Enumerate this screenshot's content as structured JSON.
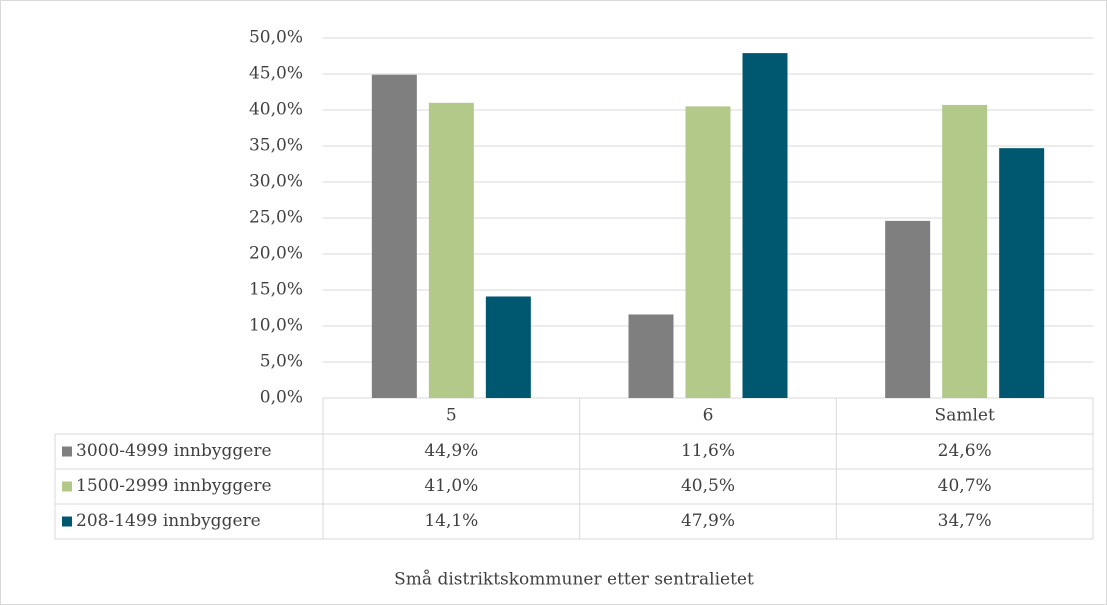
{
  "chart_data": {
    "type": "bar",
    "x_label": "Små distriktskommuner etter sentralietet",
    "categories": [
      "5",
      "6",
      "Samlet"
    ],
    "series": [
      {
        "name": "3000-4999 innbyggere",
        "color": "#7f7f80",
        "values": [
          44.9,
          11.6,
          24.6
        ],
        "value_labels": [
          "44,9%",
          "11,6%",
          "24,6%"
        ]
      },
      {
        "name": "1500-2999 innbyggere",
        "color": "#b2c98a",
        "values": [
          41.0,
          40.5,
          40.7
        ],
        "value_labels": [
          "41,0%",
          "40,5%",
          "40,7%"
        ]
      },
      {
        "name": "208-1499 innbyggere",
        "color": "#005770",
        "values": [
          14.1,
          47.9,
          34.7
        ],
        "value_labels": [
          "14,1%",
          "47,9%",
          "34,7%"
        ]
      }
    ],
    "ylim": [
      0,
      50
    ],
    "yticks": [
      {
        "value": 0,
        "label": "0,0%"
      },
      {
        "value": 5,
        "label": "5,0%"
      },
      {
        "value": 10,
        "label": "10,0%"
      },
      {
        "value": 15,
        "label": "15,0%"
      },
      {
        "value": 20,
        "label": "20,0%"
      },
      {
        "value": 25,
        "label": "25,0%"
      },
      {
        "value": 30,
        "label": "30,0%"
      },
      {
        "value": 35,
        "label": "35,0%"
      },
      {
        "value": 40,
        "label": "40,0%"
      },
      {
        "value": 45,
        "label": "45,0%"
      },
      {
        "value": 50,
        "label": "50,0%"
      }
    ],
    "grid": true
  }
}
